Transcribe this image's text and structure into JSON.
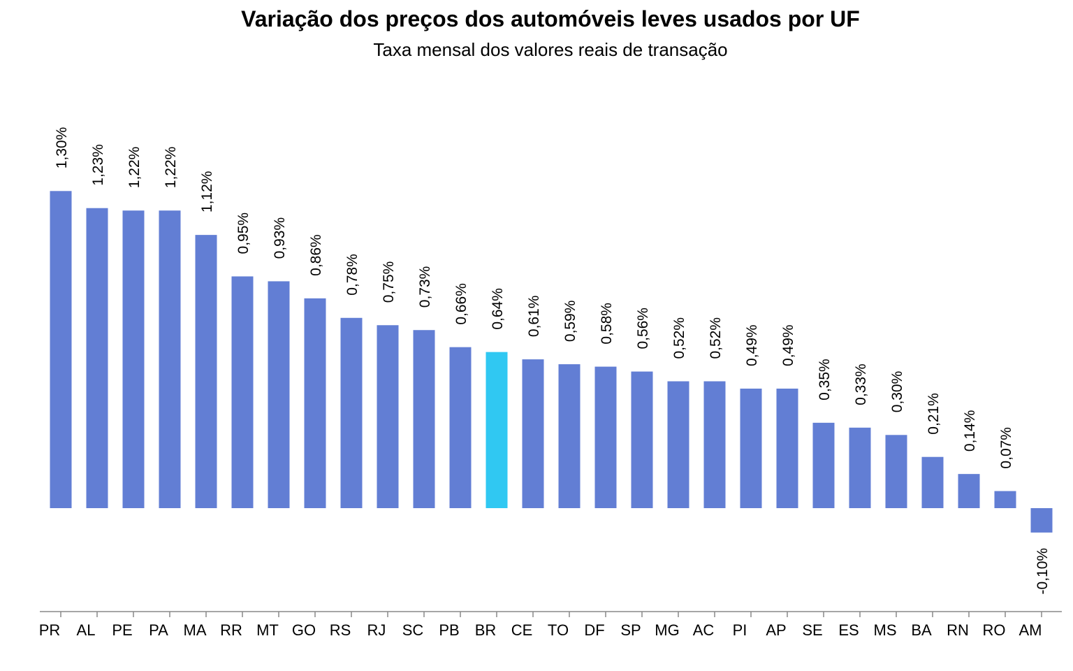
{
  "chart_data": {
    "type": "bar",
    "title": "Variação dos preços dos automóveis leves usados por UF",
    "subtitle": "Taxa mensal dos valores reais de transação",
    "categories": [
      "PR",
      "AL",
      "PE",
      "PA",
      "MA",
      "RR",
      "MT",
      "GO",
      "RS",
      "RJ",
      "SC",
      "PB",
      "BR",
      "CE",
      "TO",
      "DF",
      "SP",
      "MG",
      "AC",
      "PI",
      "AP",
      "SE",
      "ES",
      "MS",
      "BA",
      "RN",
      "RO",
      "AM"
    ],
    "values": [
      1.3,
      1.23,
      1.22,
      1.22,
      1.12,
      0.95,
      0.93,
      0.86,
      0.78,
      0.75,
      0.73,
      0.66,
      0.64,
      0.61,
      0.59,
      0.58,
      0.56,
      0.52,
      0.52,
      0.49,
      0.49,
      0.35,
      0.33,
      0.3,
      0.21,
      0.14,
      0.07,
      -0.1
    ],
    "data_labels": [
      "1,30%",
      "1,23%",
      "1,22%",
      "1,22%",
      "1,12%",
      "0,95%",
      "0,93%",
      "0,86%",
      "0,78%",
      "0,75%",
      "0,73%",
      "0,66%",
      "0,64%",
      "0,61%",
      "0,59%",
      "0,58%",
      "0,56%",
      "0,52%",
      "0,52%",
      "0,49%",
      "0,49%",
      "0,35%",
      "0,33%",
      "0,30%",
      "0,21%",
      "0,14%",
      "0,07%",
      "-0,10%"
    ],
    "highlight_category": "BR",
    "colors": {
      "default": "#627ed4",
      "highlight": "#30c8f2",
      "axis": "#888888"
    },
    "xlabel": "",
    "ylabel": "",
    "grid": false,
    "legend": "none"
  }
}
